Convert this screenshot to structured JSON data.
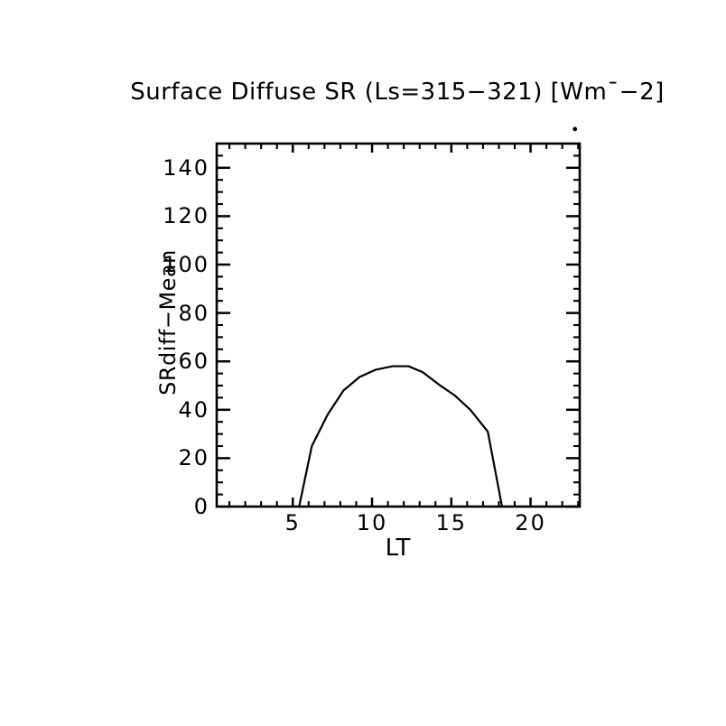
{
  "page": {
    "background_color": "#ffffff",
    "foreground_color": "#000000"
  },
  "chart_data": {
    "type": "line",
    "title": "Surface Diffuse SR (Ls=315−321) [Wm¯−2]",
    "xlabel": "LT",
    "ylabel": "SRdiff−Mean",
    "xlim": [
      0.2,
      23.1
    ],
    "ylim": [
      0,
      150
    ],
    "xticks": [
      5,
      10,
      15,
      20
    ],
    "yticks": [
      0,
      20,
      40,
      60,
      80,
      100,
      120,
      140
    ],
    "x_minor_step": 1,
    "y_minor_step": 5,
    "grid": false,
    "legend": "none",
    "line_color": "#000000",
    "series": [
      {
        "name": "SRdiff-Mean",
        "x": [
          5.4,
          6.2,
          7.2,
          8.2,
          9.2,
          10.2,
          11.3,
          12.3,
          13.2,
          14.2,
          15.2,
          16.2,
          17.3,
          18.2
        ],
        "y": [
          0,
          25,
          38,
          48,
          53.5,
          56.5,
          58,
          58,
          55.5,
          50.5,
          46,
          40,
          31,
          0
        ]
      }
    ],
    "stray_point": {
      "x": 22.8,
      "y": 156
    }
  }
}
